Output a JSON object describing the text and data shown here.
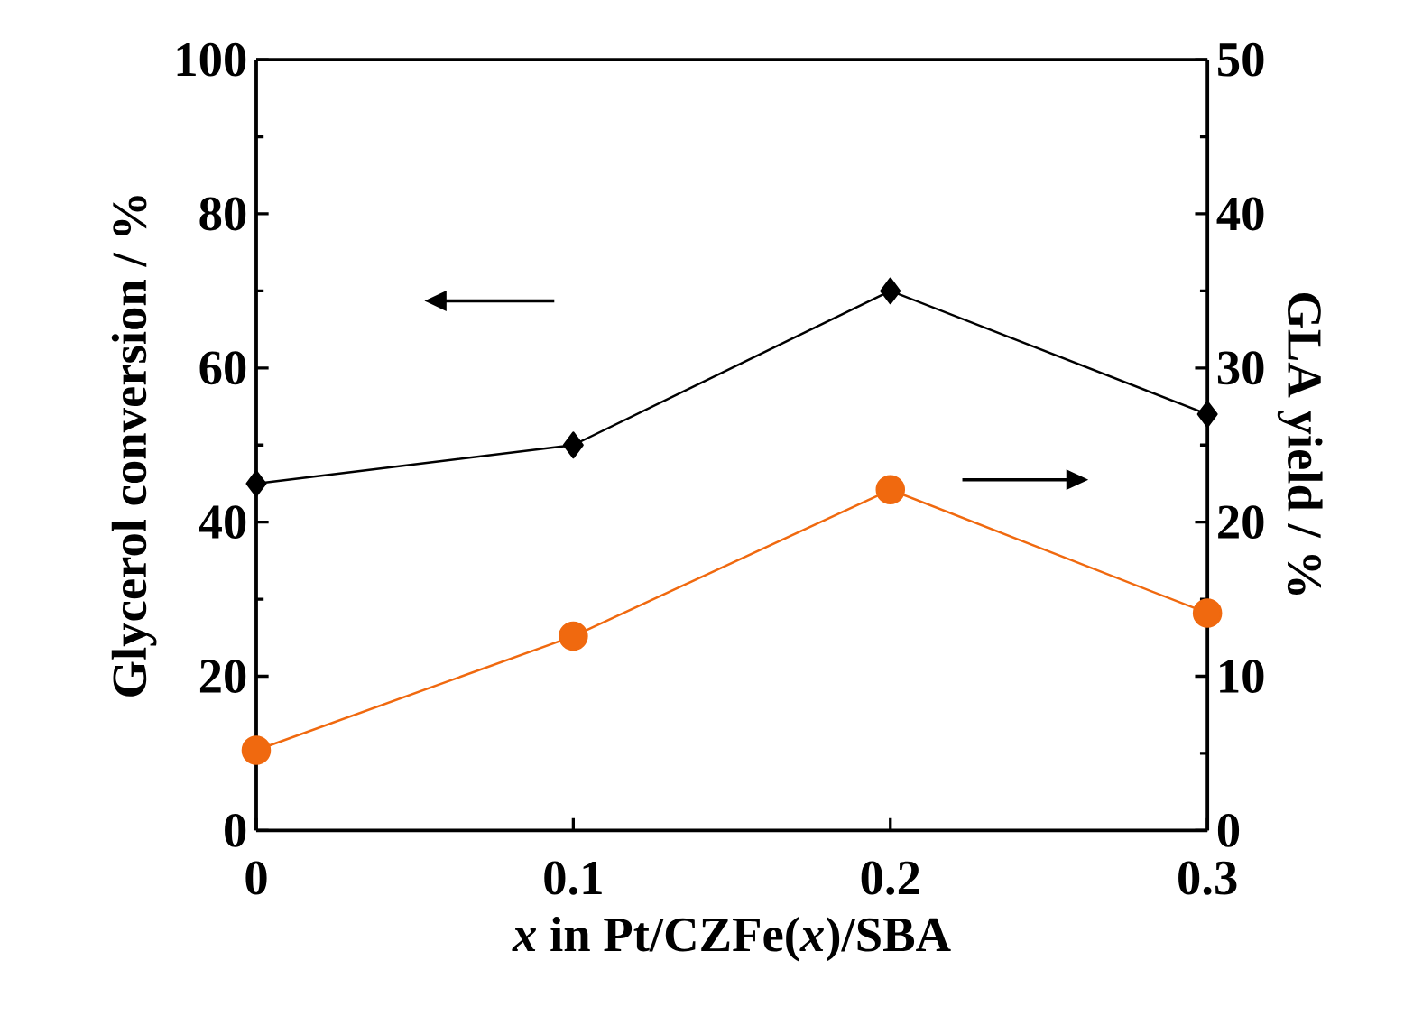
{
  "chart_data": {
    "type": "line",
    "xlabel": "*x* in Pt/CZFe(*x*)/SBA",
    "ylabel": "Glycerol conversion / %",
    "y2label": "GLA yield / %",
    "x": [
      0,
      0.1,
      0.2,
      0.3
    ],
    "xlim": [
      0,
      0.3
    ],
    "xticks": [
      0,
      0.1,
      0.2,
      0.3
    ],
    "ylim": [
      0,
      100
    ],
    "yticks": [
      0,
      20,
      40,
      60,
      80,
      100
    ],
    "y2lim": [
      0,
      50
    ],
    "y2ticks": [
      0,
      10,
      20,
      30,
      40,
      50
    ],
    "series": [
      {
        "color": "#000000",
        "marker": "diamond",
        "values": [
          45,
          50,
          70,
          54
        ]
      },
      {
        "color": "#f0690f",
        "marker": "circle",
        "axis": "y2",
        "values": [
          5.2,
          12.6,
          22.1,
          14.1
        ]
      }
    ],
    "grid": false,
    "line_style": "solid"
  }
}
